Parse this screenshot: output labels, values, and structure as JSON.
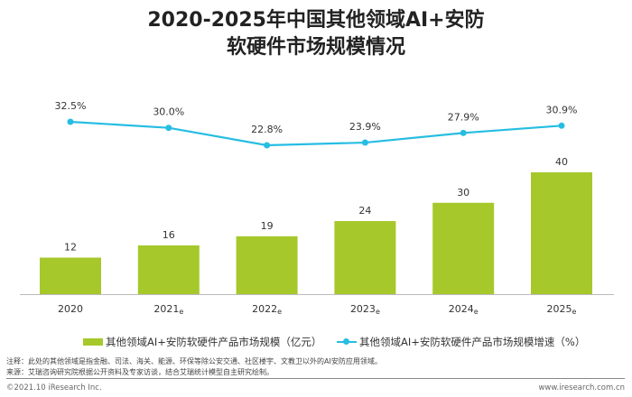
{
  "title_line1": "2020-2025年中国其他领域AI+安防",
  "title_line2": "软硬件市场规模情况",
  "chart_data": {
    "type": "bar+line",
    "categories": [
      "2020",
      "2021e",
      "2022e",
      "2023e",
      "2024e",
      "2025e"
    ],
    "series": [
      {
        "name": "其他领域AI+安防软硬件产品市场规模（亿元）",
        "type": "bar",
        "values": [
          12,
          16,
          19,
          24,
          30,
          40
        ],
        "color": "#a6c82b"
      },
      {
        "name": "其他领域AI+安防软硬件产品市场规模增速（%）",
        "type": "line",
        "values": [
          32.5,
          30.0,
          22.8,
          23.9,
          27.9,
          30.9
        ],
        "labels": [
          "32.5%",
          "30.0%",
          "22.8%",
          "23.9%",
          "27.9%",
          "30.9%"
        ],
        "color": "#26bde2"
      }
    ],
    "grid": false,
    "legend": "bottom"
  },
  "notes": {
    "note": "注释：此处的其他领域是指金融、司法、海关、能源、环保等除公安交通、社区楼宇、文教卫以外的AI安防应用领域。",
    "source": "来源：艾瑞咨询研究院根据公开资料及专家访谈，结合艾瑞统计模型自主研究绘制。"
  },
  "footer": {
    "copyright": "©2021.10 iResearch Inc.",
    "website": "www.iresearch.com.cn"
  }
}
